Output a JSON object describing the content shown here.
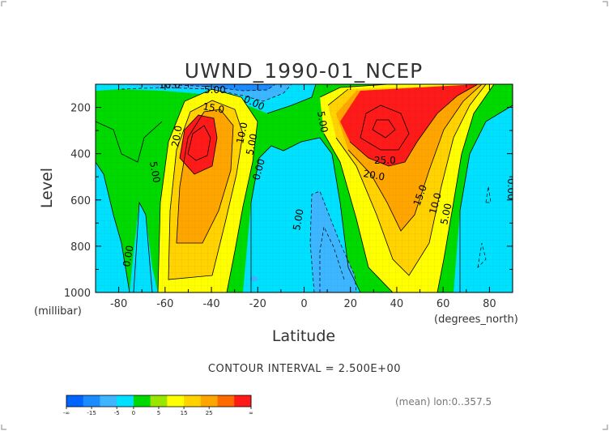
{
  "chart_data": {
    "type": "heatmap",
    "title": "UWND_1990-01_NCEP",
    "xlabel": "Latitude",
    "xlabel_units": "(degrees_north)",
    "ylabel": "Level",
    "ylabel_units": "(millibar)",
    "xlim": [
      -90,
      90
    ],
    "ylim": [
      1000,
      100
    ],
    "y_inverted": true,
    "x_ticks": [
      "-80",
      "-60",
      "-40",
      "-20",
      "0",
      "20",
      "40",
      "60",
      "80"
    ],
    "y_ticks": [
      "200",
      "400",
      "600",
      "800",
      "1000"
    ],
    "contour_interval_text": "CONTOUR INTERVAL = 2.500E+00",
    "footer_note": "(mean) lon:0..357.5",
    "contour_labels": [
      "10.0",
      "5.00",
      "0.00",
      "15.0",
      "20.0",
      "5.00",
      "10.0",
      "5.00",
      "0.00",
      "0.00",
      "5.00",
      "25.0",
      "20.0",
      "15.0",
      "10.0",
      "5.00",
      "0.00",
      "5.00",
      "0.00"
    ],
    "regions": [
      {
        "name": "southern-jet-outer",
        "level": "5",
        "color": "#ffff00"
      },
      {
        "name": "southern-jet-orange",
        "level": "15",
        "color": "#ffa500"
      },
      {
        "name": "southern-jet-core",
        "level": "25",
        "color": "#ff1a1a"
      },
      {
        "name": "northern-jet-outer",
        "level": "5",
        "color": "#ffff00"
      },
      {
        "name": "northern-jet-orange",
        "level": "15",
        "color": "#ffa500"
      },
      {
        "name": "northern-jet-core",
        "level": "25",
        "color": "#ff1a1a"
      },
      {
        "name": "tropical-easterlies",
        "level": "-5",
        "color": "#3db6ff"
      },
      {
        "name": "polar-easterlies",
        "level": "-5",
        "color": "#3db6ff"
      }
    ],
    "colorbar": {
      "labels": [
        "-∞",
        "-15",
        "-5",
        "0",
        "5",
        "15",
        "25",
        "∞"
      ],
      "colors": [
        "#0064ff",
        "#1a8cff",
        "#3db6ff",
        "#00e0ff",
        "#00d900",
        "#99e600",
        "#ffff00",
        "#ffd200",
        "#ffa500",
        "#ff6a00",
        "#ff1a1a"
      ]
    }
  }
}
